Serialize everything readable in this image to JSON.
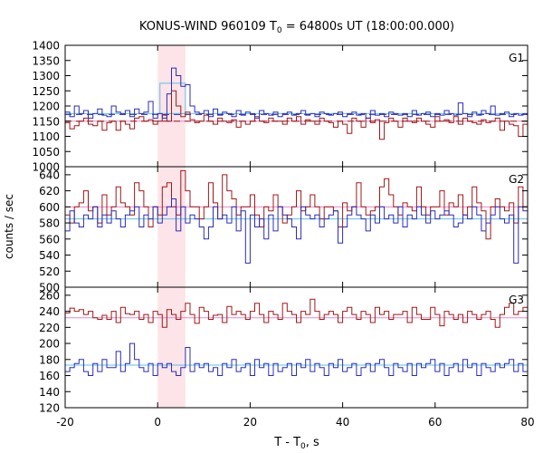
{
  "chart_data": {
    "type": "line",
    "title_main": "KONUS-WIND 960109 T",
    "title_sub": "0",
    "title_rest": " = 64800s UT (18:00:00.000)",
    "xlabel_main": "T - T",
    "xlabel_sub": "0",
    "xlabel_rest": ", s",
    "ylabel": "counts / sec",
    "xlim": [
      -20,
      80
    ],
    "xticks": [
      "-20",
      "0",
      "20",
      "40",
      "60",
      "80"
    ],
    "xtick_values": [
      -20,
      0,
      20,
      40,
      60,
      80
    ],
    "highlight_interval": [
      0,
      6
    ],
    "colors": {
      "red_series": "#a01818",
      "blue_series": "#2c2cb8",
      "red_mean": "#e888c8",
      "blue_mean": "#5cc0e8",
      "highlight": "#fde4e8",
      "dashed_red": "#a01818",
      "dashed_blue": "#2c2cb8"
    },
    "panels": [
      {
        "name": "G1",
        "ylim": [
          1000,
          1400
        ],
        "yticks": [
          "1000",
          "1050",
          "1100",
          "1150",
          "1200",
          "1250",
          "1300",
          "1350",
          "1400"
        ],
        "ytick_values": [
          1000,
          1050,
          1100,
          1150,
          1200,
          1250,
          1300,
          1350,
          1400
        ],
        "mean_red": 1150,
        "mean_blue": 1175,
        "dashed_red": 1150,
        "dashed_blue": 1172,
        "bin_box": {
          "x": [
            0.5,
            6.0
          ],
          "y": 1275
        },
        "red_values": [
          1145,
          1125,
          1135,
          1150,
          1160,
          1140,
          1135,
          1150,
          1120,
          1145,
          1150,
          1120,
          1150,
          1140,
          1125,
          1160,
          1165,
          1150,
          1155,
          1140,
          1150,
          1170,
          1150,
          1250,
          1200,
          1165,
          1180,
          1155,
          1145,
          1150,
          1170,
          1150,
          1140,
          1160,
          1150,
          1145,
          1155,
          1130,
          1150,
          1140,
          1150,
          1165,
          1150,
          1145,
          1160,
          1150,
          1150,
          1140,
          1160,
          1150,
          1165,
          1140,
          1155,
          1150,
          1140,
          1160,
          1150,
          1145,
          1130,
          1150,
          1140,
          1110,
          1160,
          1150,
          1130,
          1160,
          1145,
          1155,
          1090,
          1145,
          1160,
          1150,
          1130,
          1160,
          1150,
          1145,
          1160,
          1150,
          1140,
          1130,
          1165,
          1150,
          1155,
          1145,
          1165,
          1140,
          1160,
          1150,
          1145,
          1140,
          1155,
          1145,
          1150,
          1160,
          1120,
          1150,
          1140,
          1135,
          1100,
          1140
        ],
        "blue_values": [
          1180,
          1165,
          1200,
          1175,
          1185,
          1160,
          1175,
          1190,
          1170,
          1165,
          1200,
          1180,
          1175,
          1185,
          1165,
          1190,
          1175,
          1180,
          1215,
          1160,
          1175,
          1160,
          1240,
          1325,
          1300,
          1265,
          1270,
          1200,
          1180,
          1175,
          1185,
          1165,
          1190,
          1170,
          1180,
          1175,
          1165,
          1185,
          1170,
          1180,
          1175,
          1160,
          1185,
          1175,
          1170,
          1180,
          1165,
          1175,
          1180,
          1170,
          1175,
          1185,
          1170,
          1175,
          1165,
          1180,
          1175,
          1170,
          1175,
          1180,
          1165,
          1175,
          1180,
          1170,
          1175,
          1160,
          1185,
          1170,
          1175,
          1165,
          1180,
          1175,
          1170,
          1175,
          1165,
          1185,
          1170,
          1175,
          1180,
          1165,
          1175,
          1170,
          1185,
          1175,
          1170,
          1210,
          1175,
          1165,
          1180,
          1170,
          1185,
          1175,
          1200,
          1170,
          1175,
          1180,
          1165,
          1175,
          1170,
          1175
        ]
      },
      {
        "name": "G2",
        "ylim": [
          500,
          650
        ],
        "yticks": [
          "500",
          "520",
          "540",
          "560",
          "580",
          "600",
          "620",
          "640"
        ],
        "ytick_values": [
          500,
          520,
          540,
          560,
          580,
          600,
          620,
          640
        ],
        "mean_red": 600,
        "mean_blue": 585,
        "red_values": [
          590,
          580,
          600,
          605,
          620,
          595,
          600,
          580,
          615,
          590,
          600,
          625,
          605,
          600,
          590,
          630,
          620,
          600,
          575,
          600,
          590,
          625,
          630,
          600,
          590,
          645,
          620,
          600,
          600,
          585,
          600,
          630,
          605,
          585,
          640,
          620,
          610,
          590,
          600,
          600,
          615,
          590,
          575,
          600,
          595,
          615,
          600,
          580,
          590,
          600,
          620,
          595,
          600,
          615,
          600,
          585,
          600,
          600,
          595,
          575,
          605,
          595,
          600,
          630,
          600,
          590,
          595,
          600,
          625,
          635,
          615,
          600,
          590,
          605,
          600,
          595,
          625,
          600,
          590,
          600,
          600,
          620,
          590,
          605,
          600,
          615,
          590,
          600,
          625,
          605,
          595,
          560,
          600,
          610,
          600,
          595,
          605,
          580,
          625,
          600
        ],
        "blue_values": [
          570,
          595,
          580,
          575,
          590,
          585,
          600,
          575,
          590,
          580,
          595,
          585,
          575,
          590,
          595,
          600,
          575,
          590,
          585,
          600,
          580,
          590,
          600,
          610,
          570,
          600,
          580,
          590,
          585,
          575,
          560,
          575,
          600,
          585,
          590,
          580,
          600,
          570,
          595,
          530,
          590,
          575,
          585,
          560,
          590,
          570,
          600,
          590,
          585,
          575,
          560,
          600,
          590,
          585,
          590,
          575,
          585,
          590,
          595,
          555,
          575,
          590,
          600,
          590,
          585,
          570,
          590,
          580,
          600,
          585,
          590,
          580,
          600,
          575,
          590,
          585,
          600,
          590,
          580,
          595,
          585,
          590,
          595,
          590,
          575,
          580,
          590,
          585,
          600,
          590,
          570,
          580,
          590,
          600,
          585,
          580,
          590,
          530,
          600,
          595
        ]
      },
      {
        "name": "G3",
        "ylim": [
          120,
          270
        ],
        "yticks": [
          "120",
          "140",
          "160",
          "180",
          "200",
          "220",
          "240",
          "260"
        ],
        "ytick_values": [
          120,
          140,
          160,
          180,
          200,
          220,
          240,
          260
        ],
        "mean_red": 232,
        "mean_blue": 173,
        "red_values": [
          238,
          244,
          240,
          242,
          236,
          240,
          232,
          230,
          235,
          230,
          240,
          226,
          245,
          237,
          236,
          240,
          230,
          236,
          226,
          240,
          236,
          220,
          242,
          236,
          230,
          240,
          250,
          236,
          225,
          245,
          240,
          230,
          235,
          236,
          226,
          246,
          236,
          240,
          236,
          230,
          240,
          250,
          236,
          226,
          240,
          236,
          230,
          250,
          240,
          236,
          226,
          240,
          236,
          255,
          240,
          230,
          236,
          240,
          236,
          226,
          240,
          245,
          236,
          230,
          240,
          236,
          226,
          245,
          236,
          240,
          230,
          236,
          236,
          240,
          226,
          245,
          236,
          230,
          230,
          245,
          236,
          222,
          240,
          236,
          230,
          236,
          226,
          240,
          236,
          230,
          236,
          240,
          230,
          220,
          236,
          245,
          250,
          236,
          240,
          245
        ],
        "blue_values": [
          165,
          170,
          175,
          180,
          165,
          160,
          175,
          165,
          180,
          170,
          170,
          190,
          165,
          175,
          200,
          180,
          170,
          165,
          175,
          160,
          175,
          170,
          175,
          165,
          160,
          170,
          195,
          165,
          175,
          170,
          175,
          165,
          170,
          160,
          175,
          170,
          180,
          165,
          170,
          175,
          160,
          180,
          170,
          175,
          160,
          175,
          165,
          170,
          175,
          160,
          175,
          170,
          180,
          165,
          175,
          170,
          160,
          175,
          170,
          180,
          165,
          170,
          175,
          160,
          170,
          175,
          165,
          175,
          180,
          170,
          160,
          175,
          170,
          165,
          175,
          160,
          175,
          170,
          175,
          180,
          165,
          175,
          160,
          170,
          175,
          165,
          180,
          170,
          175,
          160,
          175,
          170,
          165,
          175,
          170,
          175,
          180,
          165,
          175,
          165
        ]
      }
    ]
  }
}
